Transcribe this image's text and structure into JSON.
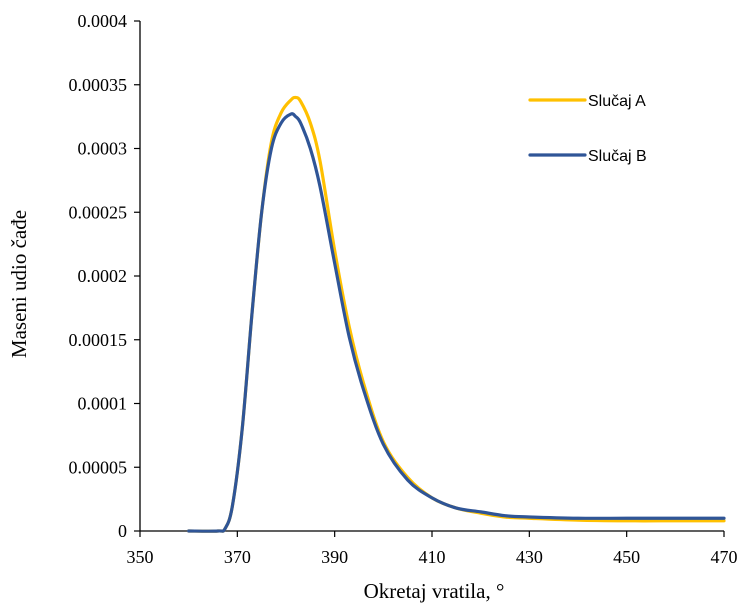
{
  "chart_data": {
    "type": "line",
    "xlabel": "Okretaj vratila, °",
    "ylabel": "Maseni udio čađe",
    "xlim": [
      350,
      470
    ],
    "ylim": [
      0,
      0.0004
    ],
    "x_ticks": [
      350,
      370,
      390,
      410,
      430,
      450,
      470
    ],
    "x_tick_labels": [
      "350",
      "370",
      "390",
      "410",
      "430",
      "450",
      "470"
    ],
    "y_ticks": [
      0,
      5e-05,
      0.0001,
      0.00015,
      0.0002,
      0.00025,
      0.0003,
      0.00035,
      0.0004
    ],
    "y_tick_labels": [
      "0",
      "0.00005",
      "0.0001",
      "0.00015",
      "0.0002",
      "0.00025",
      "0.0003",
      "0.00035",
      "0.0004"
    ],
    "grid": false,
    "legend_position": "top-right",
    "series": [
      {
        "name": "Slučaj A",
        "color": "#FFC000",
        "x": [
          360,
          366,
          367.5,
          369,
          371,
          373,
          375,
          377,
          379,
          381,
          382,
          383,
          385,
          387,
          390,
          393,
          396,
          400,
          405,
          410,
          415,
          420,
          425,
          430,
          440,
          450,
          460,
          470
        ],
        "y": [
          0,
          0,
          2e-06,
          2e-05,
          8e-05,
          0.00017,
          0.00025,
          0.000305,
          0.000328,
          0.000338,
          0.00034,
          0.000337,
          0.00032,
          0.00029,
          0.00022,
          0.00016,
          0.000115,
          7e-05,
          4.2e-05,
          2.6e-05,
          1.8e-05,
          1.4e-05,
          1.1e-05,
          1e-05,
          8.5e-06,
          8e-06,
          8e-06,
          8e-06
        ]
      },
      {
        "name": "Slučaj B",
        "color": "#2F5597",
        "x": [
          360,
          366,
          367.5,
          369,
          371,
          373,
          375,
          377,
          379,
          381,
          382,
          383,
          385,
          387,
          390,
          393,
          396,
          400,
          405,
          410,
          415,
          420,
          425,
          430,
          440,
          450,
          460,
          470
        ],
        "y": [
          0,
          0,
          2e-06,
          2e-05,
          8e-05,
          0.00017,
          0.00025,
          0.0003,
          0.00032,
          0.000327,
          0.000325,
          0.00032,
          0.0003,
          0.00027,
          0.00021,
          0.000152,
          0.00011,
          6.8e-05,
          4e-05,
          2.6e-05,
          1.8e-05,
          1.5e-05,
          1.2e-05,
          1.1e-05,
          1e-05,
          1e-05,
          1e-05,
          1e-05
        ]
      }
    ]
  }
}
